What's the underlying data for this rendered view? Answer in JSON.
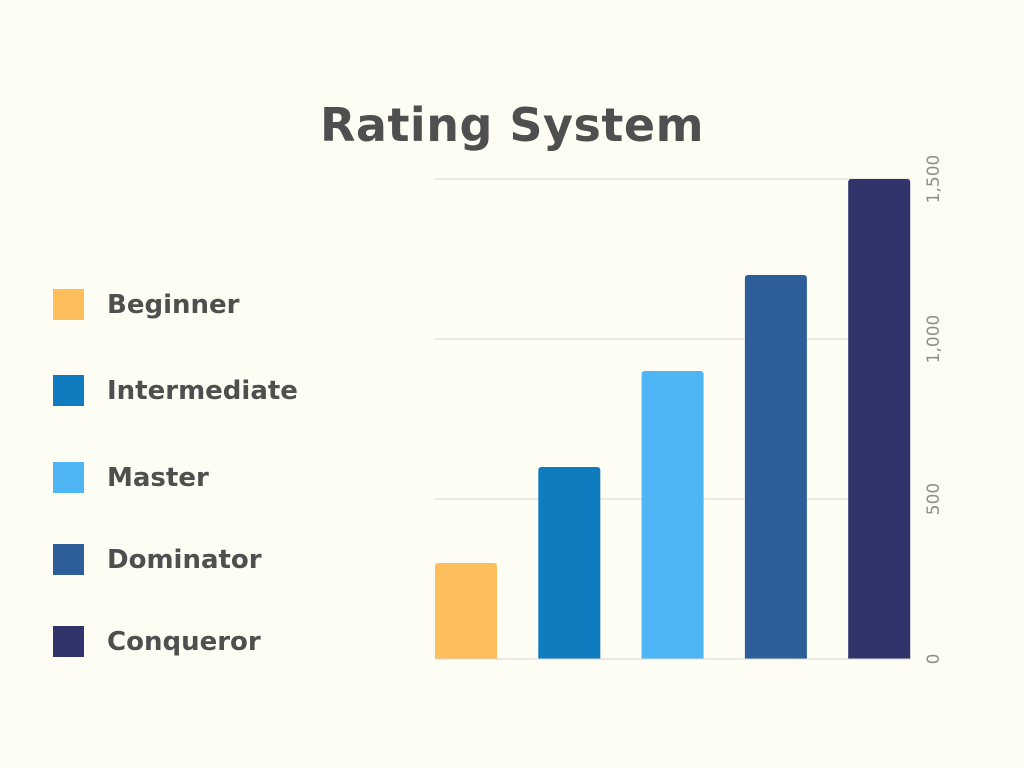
{
  "chart_data": {
    "type": "bar",
    "title": "Rating System",
    "categories": [
      "Beginner",
      "Intermediate",
      "Master",
      "Dominator",
      "Conqueror"
    ],
    "values": [
      300,
      600,
      900,
      1200,
      1500
    ],
    "colors": [
      "#fdbe5b",
      "#0f7cbf",
      "#4fb6f5",
      "#2d5e99",
      "#30346b"
    ],
    "ylim": [
      0,
      1500
    ],
    "yticks": [
      0,
      500,
      1000,
      1500
    ],
    "ytick_labels": [
      "0",
      "500",
      "1,000",
      "1,500"
    ],
    "y_axis_position": "right",
    "grid": true,
    "legend_position": "left",
    "xlabel": "",
    "ylabel": ""
  }
}
